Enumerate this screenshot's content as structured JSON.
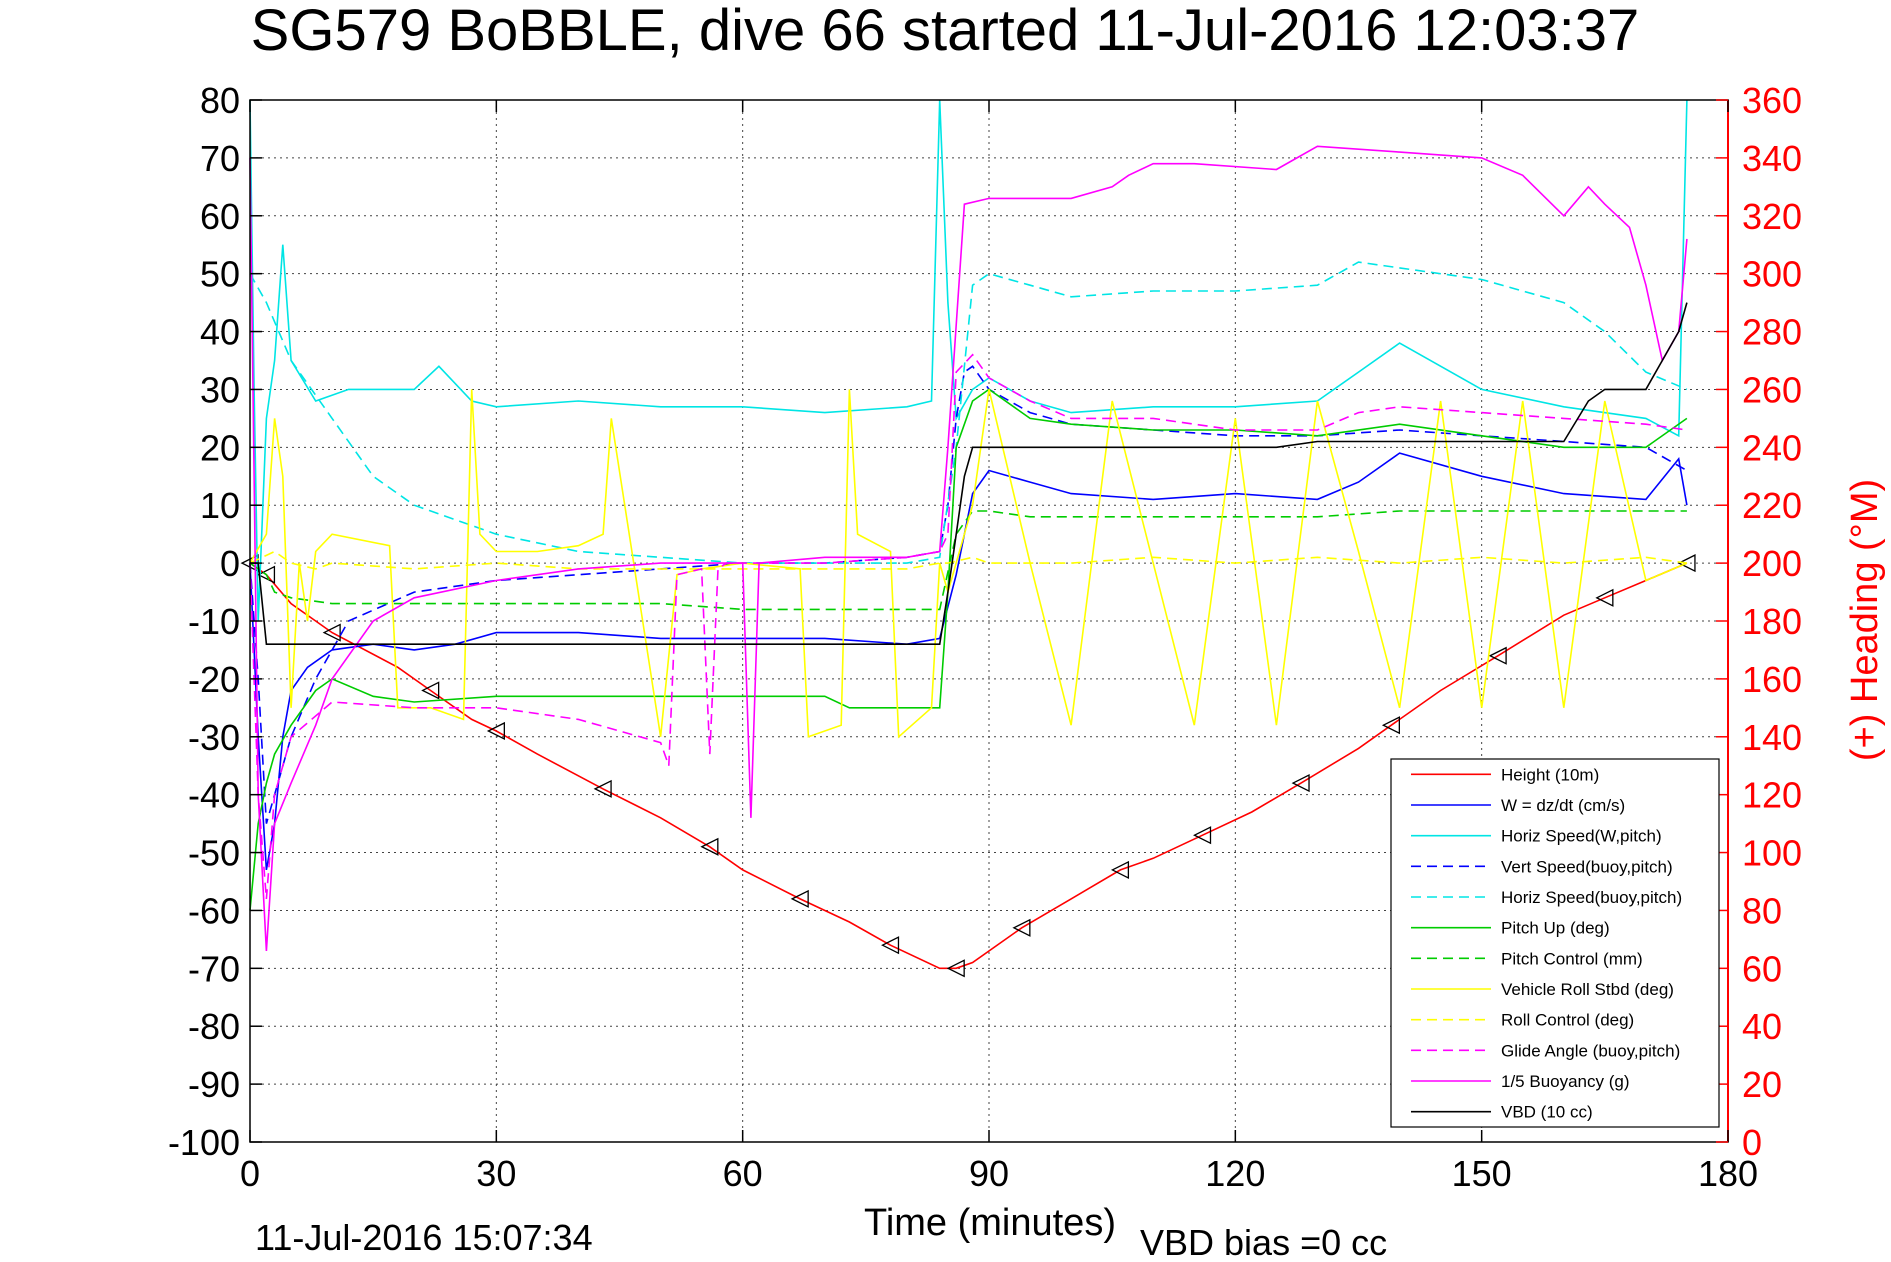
{
  "chart_data": {
    "type": "line",
    "title": "SG579 BoBBLE, dive 66 started 11-Jul-2016 12:03:37",
    "xlabel": "Time (minutes)",
    "ylabel_right": "(+) Heading (°M)",
    "xlim": [
      0,
      180
    ],
    "ylim": [
      -100,
      80
    ],
    "ylim_right": [
      0,
      360
    ],
    "xticks": [
      "0",
      "30",
      "60",
      "90",
      "120",
      "150",
      "180"
    ],
    "yticks": [
      "80",
      "70",
      "60",
      "50",
      "40",
      "30",
      "20",
      "10",
      "0",
      "-10",
      "-20",
      "-30",
      "-40",
      "-50",
      "-60",
      "-70",
      "-80",
      "-90",
      "-100"
    ],
    "yticks_right": [
      "360",
      "340",
      "320",
      "300",
      "280",
      "260",
      "240",
      "220",
      "200",
      "180",
      "160",
      "140",
      "120",
      "100",
      "80",
      "60",
      "40",
      "20",
      "0"
    ],
    "grid": true,
    "legend_position": "bottom-right",
    "footer_left": "11-Jul-2016 15:07:34",
    "footer_right": "VBD bias =0 cc",
    "series": [
      {
        "name": "Height (10m)",
        "color": "#ff0000",
        "dash": "solid",
        "x": [
          0,
          1,
          2,
          5,
          10,
          18,
          22,
          27,
          30,
          35,
          43,
          50,
          56,
          60,
          67,
          73,
          78,
          84,
          86,
          88,
          94,
          100,
          106,
          110,
          116,
          122,
          128,
          135,
          139,
          145,
          152,
          160,
          165,
          170,
          175
        ],
        "y": [
          0,
          -1,
          -2,
          -7,
          -12,
          -18,
          -22,
          -27,
          -29,
          -33,
          -39,
          -44,
          -49,
          -53,
          -58,
          -62,
          -66,
          -70,
          -70,
          -69,
          -63,
          -58,
          -53,
          -51,
          -47,
          -43,
          -38,
          -32,
          -28,
          -22,
          -16,
          -9,
          -6,
          -3,
          0
        ]
      },
      {
        "name": "W = dz/dt (cm/s)",
        "color": "#0000ff",
        "dash": "solid",
        "x": [
          0,
          1,
          2,
          3,
          4,
          5,
          7,
          10,
          15,
          20,
          25,
          30,
          40,
          50,
          60,
          70,
          80,
          84,
          86,
          88,
          90,
          95,
          100,
          110,
          120,
          130,
          135,
          140,
          150,
          160,
          170,
          174,
          175
        ],
        "y": [
          0,
          -30,
          -53,
          -45,
          -30,
          -22,
          -18,
          -15,
          -14,
          -15,
          -14,
          -12,
          -12,
          -13,
          -13,
          -13,
          -14,
          -13,
          -2,
          12,
          16,
          14,
          12,
          11,
          12,
          11,
          14,
          19,
          15,
          12,
          11,
          18,
          10
        ]
      },
      {
        "name": "Horiz Speed(W,pitch)",
        "color": "#00e5e5",
        "dash": "solid",
        "x": [
          0,
          0.5,
          1,
          2,
          3,
          4,
          5,
          8,
          12,
          20,
          23,
          27,
          30,
          40,
          50,
          60,
          70,
          80,
          83,
          84,
          85,
          86,
          88,
          90,
          95,
          100,
          110,
          120,
          130,
          135,
          140,
          150,
          160,
          170,
          174,
          175
        ],
        "y": [
          80,
          30,
          -10,
          25,
          35,
          55,
          35,
          28,
          30,
          30,
          34,
          28,
          27,
          28,
          27,
          27,
          26,
          27,
          28,
          80,
          45,
          25,
          30,
          32,
          28,
          26,
          27,
          27,
          28,
          33,
          38,
          30,
          27,
          25,
          22,
          80
        ]
      },
      {
        "name": "Vert Speed(buoy,pitch)",
        "color": "#0000ff",
        "dash": "dash",
        "x": [
          0,
          1,
          2,
          3,
          5,
          8,
          12,
          20,
          30,
          40,
          50,
          60,
          70,
          80,
          84,
          85,
          86,
          87,
          88,
          90,
          95,
          100,
          110,
          120,
          130,
          140,
          150,
          160,
          170,
          175
        ],
        "y": [
          0,
          -20,
          -45,
          -40,
          -30,
          -20,
          -10,
          -5,
          -3,
          -2,
          -1,
          0,
          0,
          1,
          2,
          10,
          25,
          33,
          34,
          30,
          26,
          24,
          23,
          22,
          22,
          23,
          22,
          21,
          20,
          16
        ]
      },
      {
        "name": "Horiz Speed(buoy,pitch)",
        "color": "#00e5e5",
        "dash": "dash",
        "x": [
          0,
          2,
          5,
          10,
          15,
          20,
          30,
          40,
          50,
          60,
          70,
          80,
          84,
          86,
          88,
          90,
          95,
          100,
          110,
          120,
          130,
          135,
          140,
          150,
          160,
          165,
          170,
          175
        ],
        "y": [
          50,
          45,
          35,
          25,
          15,
          10,
          5,
          2,
          1,
          0,
          0,
          0,
          1,
          20,
          48,
          50,
          48,
          46,
          47,
          47,
          48,
          52,
          51,
          49,
          45,
          40,
          33,
          30
        ]
      },
      {
        "name": "Pitch Up (deg)",
        "color": "#00cc00",
        "dash": "solid",
        "x": [
          0,
          1,
          2,
          3,
          5,
          8,
          10,
          15,
          20,
          30,
          40,
          50,
          60,
          70,
          73,
          75,
          80,
          84,
          85,
          86,
          88,
          90,
          95,
          100,
          110,
          120,
          130,
          140,
          150,
          160,
          170,
          175
        ],
        "y": [
          -60,
          -45,
          -38,
          -33,
          -28,
          -22,
          -20,
          -23,
          -24,
          -23,
          -23,
          -23,
          -23,
          -23,
          -25,
          -25,
          -25,
          -25,
          -5,
          20,
          28,
          30,
          25,
          24,
          23,
          23,
          22,
          24,
          22,
          20,
          20,
          25
        ]
      },
      {
        "name": "Pitch Control (mm)",
        "color": "#00cc00",
        "dash": "dash",
        "x": [
          0,
          2,
          3,
          5,
          10,
          20,
          30,
          40,
          50,
          60,
          70,
          80,
          84,
          86,
          88,
          90,
          95,
          100,
          110,
          120,
          130,
          140,
          150,
          160,
          170,
          175
        ],
        "y": [
          0,
          -2,
          -5,
          -6,
          -7,
          -7,
          -7,
          -7,
          -7,
          -8,
          -8,
          -8,
          -8,
          5,
          9,
          9,
          8,
          8,
          8,
          8,
          8,
          9,
          9,
          9,
          9,
          9
        ]
      },
      {
        "name": "Vehicle Roll Stbd (deg)",
        "color": "#ffff00",
        "dash": "solid",
        "x": [
          0,
          2,
          3,
          4,
          5,
          6,
          7,
          8,
          10,
          17,
          18,
          22,
          26,
          27,
          28,
          30,
          35,
          40,
          43,
          44,
          50,
          52,
          55,
          60,
          67,
          68,
          72,
          73,
          74,
          78,
          79,
          83,
          84,
          85,
          88,
          90,
          95,
          100,
          105,
          110,
          115,
          120,
          125,
          130,
          135,
          140,
          145,
          150,
          155,
          160,
          165,
          170,
          175
        ],
        "y": [
          0,
          5,
          25,
          15,
          -25,
          0,
          -10,
          2,
          5,
          3,
          -25,
          -25,
          -27,
          30,
          5,
          2,
          2,
          3,
          5,
          25,
          -30,
          -2,
          -1,
          0,
          -1,
          -30,
          -28,
          30,
          5,
          2,
          -30,
          -25,
          0,
          -5,
          10,
          30,
          0,
          -28,
          28,
          0,
          -28,
          25,
          -28,
          28,
          2,
          -25,
          28,
          -25,
          28,
          -25,
          28,
          -3,
          0
        ]
      },
      {
        "name": "Roll Control (deg)",
        "color": "#ffff00",
        "dash": "dash",
        "x": [
          0,
          3,
          5,
          8,
          10,
          20,
          30,
          40,
          50,
          60,
          70,
          80,
          84,
          85,
          88,
          90,
          100,
          110,
          120,
          130,
          140,
          150,
          160,
          170,
          175
        ],
        "y": [
          0,
          2,
          0,
          -1,
          0,
          -1,
          0,
          -1,
          -1,
          -1,
          -1,
          -1,
          0,
          0,
          1,
          0,
          0,
          1,
          0,
          1,
          0,
          1,
          0,
          1,
          0
        ]
      },
      {
        "name": "Glide Angle (buoy,pitch)",
        "color": "#ff00ff",
        "dash": "dash",
        "x": [
          0,
          1,
          2,
          3,
          5,
          10,
          20,
          30,
          40,
          50,
          51,
          52,
          55,
          56,
          57,
          58,
          60,
          70,
          80,
          84,
          85,
          86,
          88,
          90,
          95,
          100,
          110,
          120,
          130,
          135,
          140,
          150,
          160,
          170,
          175
        ],
        "y": [
          0,
          -40,
          -58,
          -40,
          -30,
          -24,
          -25,
          -25,
          -27,
          -31,
          -35,
          -2,
          -1,
          -33,
          -1,
          0,
          0,
          0,
          1,
          2,
          5,
          33,
          36,
          32,
          28,
          25,
          25,
          23,
          23,
          26,
          27,
          26,
          25,
          24,
          23
        ]
      },
      {
        "name": "1/5 Buoyancy (g)",
        "color": "#ff00ff",
        "dash": "solid",
        "x": [
          0,
          1,
          2,
          3,
          5,
          8,
          10,
          15,
          20,
          30,
          40,
          50,
          60,
          61,
          62,
          70,
          80,
          84,
          85,
          87,
          90,
          95,
          100,
          105,
          107,
          110,
          115,
          125,
          130,
          140,
          150,
          155,
          160,
          163,
          165,
          168,
          170,
          172,
          174,
          175
        ],
        "y": [
          70,
          -40,
          -67,
          -45,
          -38,
          -28,
          -20,
          -10,
          -6,
          -3,
          -1,
          0,
          0,
          -44,
          0,
          1,
          1,
          2,
          20,
          62,
          63,
          63,
          63,
          65,
          67,
          69,
          69,
          68,
          72,
          71,
          70,
          67,
          60,
          65,
          62,
          58,
          48,
          35,
          40,
          56
        ]
      },
      {
        "name": "VBD (10 cc)",
        "color": "#000000",
        "dash": "solid",
        "x": [
          0,
          1,
          2,
          5,
          10,
          20,
          30,
          40,
          50,
          60,
          70,
          80,
          84,
          85,
          86,
          87,
          88,
          90,
          95,
          100,
          105,
          110,
          115,
          120,
          125,
          130,
          140,
          150,
          155,
          160,
          163,
          165,
          170,
          172,
          174,
          175
        ],
        "y": [
          0,
          0,
          -14,
          -14,
          -14,
          -14,
          -14,
          -14,
          -14,
          -14,
          -14,
          -14,
          -14,
          -5,
          5,
          15,
          20,
          20,
          20,
          20,
          20,
          20,
          20,
          20,
          20,
          21,
          21,
          21,
          21,
          21,
          28,
          30,
          30,
          35,
          40,
          45
        ]
      }
    ]
  }
}
